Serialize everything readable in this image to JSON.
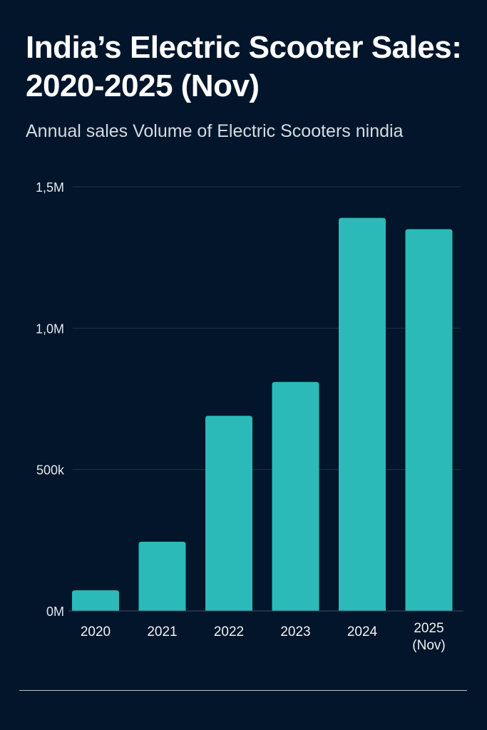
{
  "chart_data": {
    "type": "bar",
    "title": "India’s Electric Scooter Sales: 2020-2025 (Nov)",
    "subtitle": "Annual sales Volume of Electric Scooters nindia",
    "categories": [
      "2020",
      "2021",
      "2022",
      "2023",
      "2024",
      "2025 (Nov)"
    ],
    "category_lines": [
      [
        "2020"
      ],
      [
        "2021"
      ],
      [
        "2022"
      ],
      [
        "2023"
      ],
      [
        "2024"
      ],
      [
        "2025",
        "(Nov)"
      ]
    ],
    "values": [
      73000,
      245000,
      690000,
      810000,
      1390000,
      1350000
    ],
    "ylim": [
      0,
      1500000
    ],
    "yticks": [
      0,
      500000,
      1000000,
      1500000
    ],
    "ytick_labels": [
      "0M",
      "500k",
      "1,0M",
      "1,5M"
    ],
    "xlabel": "",
    "ylabel": "",
    "grid": true,
    "colors": {
      "bar": "#2bbab8",
      "background": "#02152a",
      "grid": "#1e3346"
    }
  }
}
